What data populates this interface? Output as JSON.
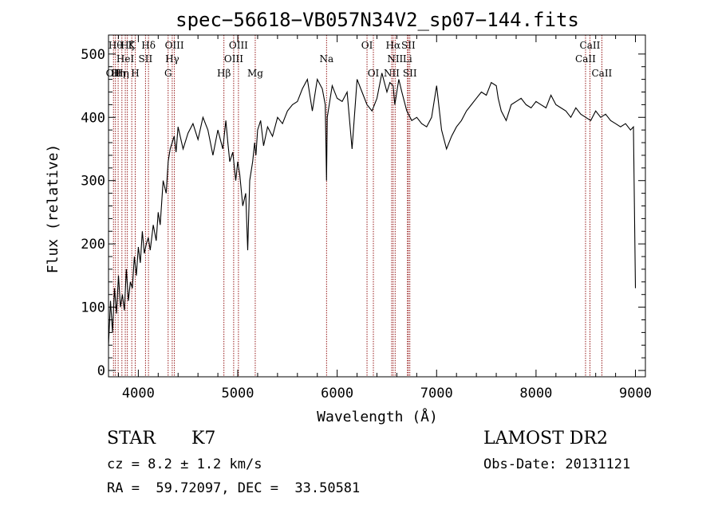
{
  "chart_data": {
    "type": "line",
    "title": "spec−56618−VB057N34V2_sp07−144.fits",
    "xlabel": "Wavelength (Å)",
    "ylabel": "Flux (relative)",
    "xlim": [
      3700,
      9100
    ],
    "ylim": [
      -10,
      530
    ],
    "x_ticks": [
      4000,
      5000,
      6000,
      7000,
      8000,
      9000
    ],
    "y_ticks": [
      0,
      100,
      200,
      300,
      400,
      500
    ],
    "grid": false,
    "line_color": "#000000",
    "marker_color": "#8b0000",
    "series": [
      {
        "x": [
          3700,
          3720,
          3740,
          3760,
          3780,
          3800,
          3820,
          3840,
          3860,
          3880,
          3900,
          3920,
          3940,
          3960,
          3980,
          4000,
          4020,
          4040,
          4060,
          4080,
          4100,
          4120,
          4150,
          4180,
          4200,
          4220,
          4250,
          4280,
          4300,
          4320,
          4340,
          4360,
          4380,
          4400,
          4450,
          4500,
          4550,
          4600,
          4650,
          4700,
          4750,
          4800,
          4850,
          4880,
          4900,
          4920,
          4950,
          4980,
          5000,
          5020,
          5050,
          5080,
          5100,
          5120,
          5150,
          5170,
          5183,
          5200,
          5230,
          5260,
          5300,
          5350,
          5400,
          5450,
          5500,
          5550,
          5600,
          5650,
          5700,
          5750,
          5800,
          5850,
          5880,
          5893,
          5900,
          5950,
          6000,
          6050,
          6100,
          6150,
          6200,
          6250,
          6300,
          6350,
          6400,
          6450,
          6500,
          6530,
          6563,
          6580,
          6620,
          6650,
          6700,
          6750,
          6800,
          6850,
          6900,
          6950,
          7000,
          7050,
          7100,
          7150,
          7200,
          7250,
          7300,
          7350,
          7400,
          7450,
          7500,
          7550,
          7600,
          7620,
          7650,
          7700,
          7750,
          7800,
          7850,
          7900,
          7950,
          8000,
          8050,
          8100,
          8150,
          8200,
          8250,
          8300,
          8350,
          8400,
          8450,
          8500,
          8550,
          8600,
          8650,
          8700,
          8750,
          8800,
          8850,
          8900,
          8950,
          8980,
          9000
        ],
        "y": [
          40,
          110,
          60,
          130,
          90,
          150,
          100,
          120,
          95,
          160,
          110,
          140,
          130,
          180,
          150,
          195,
          170,
          220,
          185,
          200,
          210,
          190,
          230,
          205,
          250,
          230,
          300,
          280,
          330,
          350,
          360,
          370,
          345,
          385,
          350,
          375,
          390,
          365,
          400,
          380,
          340,
          380,
          350,
          395,
          360,
          330,
          345,
          300,
          330,
          310,
          260,
          280,
          190,
          300,
          330,
          360,
          340,
          380,
          395,
          355,
          385,
          370,
          400,
          390,
          410,
          420,
          425,
          445,
          460,
          410,
          460,
          445,
          420,
          300,
          400,
          450,
          430,
          425,
          440,
          350,
          460,
          440,
          420,
          410,
          430,
          470,
          440,
          455,
          450,
          420,
          460,
          440,
          410,
          395,
          400,
          390,
          385,
          400,
          450,
          380,
          350,
          370,
          385,
          395,
          410,
          420,
          430,
          440,
          435,
          455,
          450,
          430,
          410,
          395,
          420,
          425,
          430,
          420,
          415,
          425,
          420,
          415,
          435,
          420,
          415,
          410,
          400,
          415,
          405,
          400,
          395,
          410,
          400,
          405,
          395,
          390,
          385,
          390,
          380,
          385,
          130
        ]
      }
    ],
    "line_markers": [
      {
        "wl": 3750,
        "label": "OII",
        "tier": 3
      },
      {
        "wl": 3770,
        "label": "Hθ",
        "tier": 1
      },
      {
        "wl": 3797,
        "label": "Hη",
        "tier": 3
      },
      {
        "wl": 3835,
        "label": "Hη",
        "tier": 3
      },
      {
        "wl": 3869,
        "label": "HeI",
        "tier": 2
      },
      {
        "wl": 3890,
        "label": "Hζ",
        "tier": 1
      },
      {
        "wl": 3934,
        "label": "K",
        "tier": 1
      },
      {
        "wl": 3969,
        "label": "H",
        "tier": 3
      },
      {
        "wl": 4072,
        "label": "SII",
        "tier": 2
      },
      {
        "wl": 4102,
        "label": "Hδ",
        "tier": 1
      },
      {
        "wl": 4300,
        "label": "G",
        "tier": 3
      },
      {
        "wl": 4341,
        "label": "Hγ",
        "tier": 2
      },
      {
        "wl": 4363,
        "label": "OIII",
        "tier": 1
      },
      {
        "wl": 4861,
        "label": "Hβ",
        "tier": 3
      },
      {
        "wl": 4959,
        "label": "OIII",
        "tier": 2
      },
      {
        "wl": 5007,
        "label": "OIII",
        "tier": 1
      },
      {
        "wl": 5176,
        "label": "Mg",
        "tier": 3
      },
      {
        "wl": 5893,
        "label": "Na",
        "tier": 2
      },
      {
        "wl": 6300,
        "label": "OI",
        "tier": 1
      },
      {
        "wl": 6364,
        "label": "OI",
        "tier": 3
      },
      {
        "wl": 6548,
        "label": "NII",
        "tier": 3
      },
      {
        "wl": 6563,
        "label": "Hα",
        "tier": 1
      },
      {
        "wl": 6583,
        "label": "NII",
        "tier": 2
      },
      {
        "wl": 6707,
        "label": "Li",
        "tier": 2
      },
      {
        "wl": 6716,
        "label": "SII",
        "tier": 1
      },
      {
        "wl": 6731,
        "label": "SII",
        "tier": 3
      },
      {
        "wl": 8498,
        "label": "CaII",
        "tier": 2
      },
      {
        "wl": 8542,
        "label": "CaII",
        "tier": 1
      },
      {
        "wl": 8662,
        "label": "CaII",
        "tier": 3
      }
    ]
  },
  "info": {
    "object_class": "STAR",
    "subclass": "K7",
    "survey": "LAMOST DR2",
    "cz": "cz = 8.2 ± 1.2 km/s",
    "obs_date": "Obs-Date: 20131121",
    "radec": "RA =  59.72097, DEC =  33.50581"
  }
}
